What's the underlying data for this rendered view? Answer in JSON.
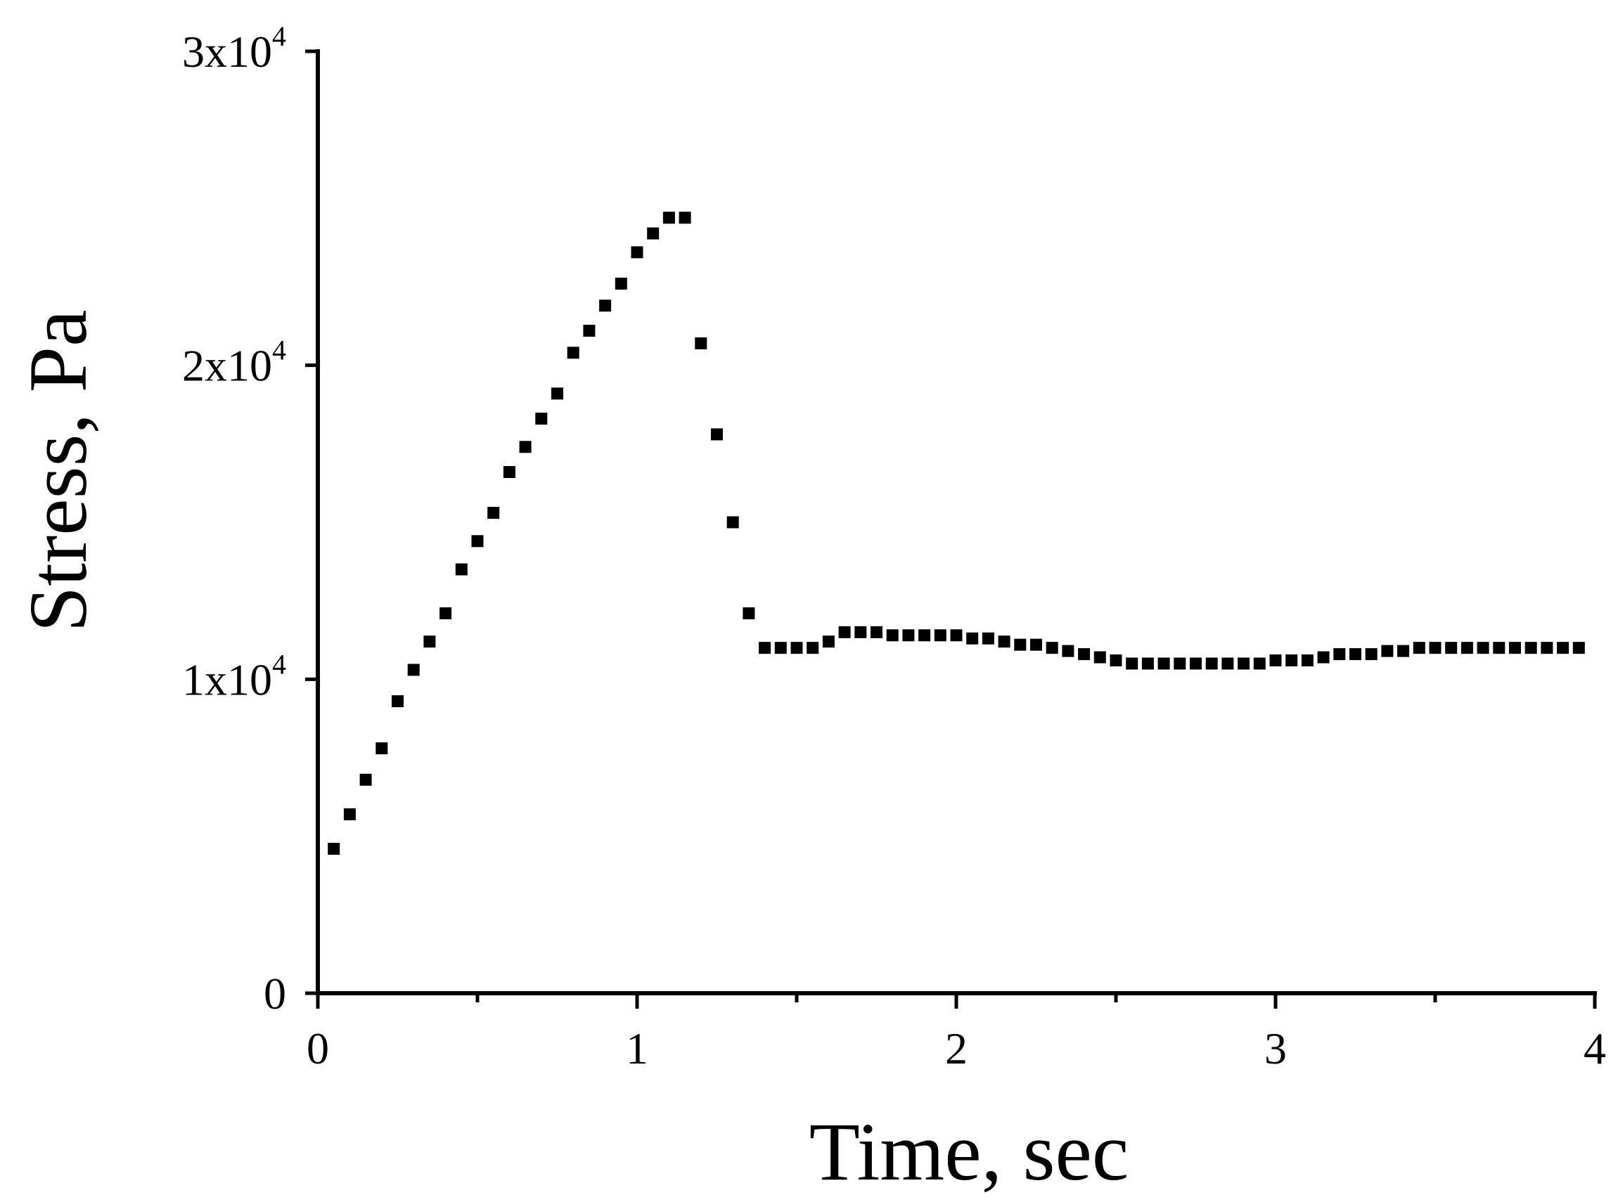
{
  "chart_data": {
    "type": "scatter",
    "title": "",
    "xlabel": "Time, sec",
    "ylabel": "Stress, Pa",
    "xlim": [
      0,
      4
    ],
    "ylim": [
      0,
      30000
    ],
    "grid": false,
    "marker": "square",
    "color": "#000000",
    "x_ticks": [
      {
        "value": 0,
        "label": "0"
      },
      {
        "value": 1,
        "label": "1"
      },
      {
        "value": 2,
        "label": "2"
      },
      {
        "value": 3,
        "label": "3"
      },
      {
        "value": 4,
        "label": "4"
      }
    ],
    "x_minor_ticks": [
      0.5,
      1.5,
      2.5,
      3.5
    ],
    "y_ticks": [
      {
        "value": 0,
        "base": "0",
        "exp": ""
      },
      {
        "value": 10000,
        "base": "1x10",
        "exp": "4"
      },
      {
        "value": 20000,
        "base": "2x10",
        "exp": "4"
      },
      {
        "value": 30000,
        "base": "3x10",
        "exp": "4"
      }
    ],
    "series": [
      {
        "x": [
          0.05,
          0.1,
          0.15,
          0.2,
          0.25,
          0.3,
          0.35,
          0.4,
          0.45,
          0.5,
          0.55,
          0.6,
          0.65,
          0.7,
          0.75,
          0.8,
          0.85,
          0.9,
          0.95,
          1.0,
          1.05,
          1.1,
          1.15,
          1.2,
          1.25,
          1.3,
          1.35,
          1.4,
          1.45,
          1.5,
          1.55,
          1.6,
          1.65,
          1.7,
          1.75,
          1.8,
          1.85,
          1.9,
          1.95,
          2.0,
          2.05,
          2.1,
          2.15,
          2.2,
          2.25,
          2.3,
          2.35,
          2.4,
          2.45,
          2.5,
          2.55,
          2.6,
          2.65,
          2.7,
          2.75,
          2.8,
          2.85,
          2.9,
          2.95,
          3.0,
          3.05,
          3.1,
          3.15,
          3.2,
          3.25,
          3.3,
          3.35,
          3.4,
          3.45,
          3.5,
          3.55,
          3.6,
          3.65,
          3.7,
          3.75,
          3.8,
          3.85,
          3.9,
          3.95
        ],
        "y": [
          4600,
          5700,
          6800,
          7800,
          9300,
          10300,
          11200,
          12100,
          13500,
          14400,
          15300,
          16600,
          17400,
          18300,
          19100,
          20400,
          21100,
          21900,
          22600,
          23600,
          24200,
          24700,
          24700,
          20700,
          17800,
          15000,
          12100,
          11000,
          11000,
          11000,
          11000,
          11200,
          11500,
          11500,
          11500,
          11400,
          11400,
          11400,
          11400,
          11400,
          11300,
          11300,
          11200,
          11100,
          11100,
          11000,
          10900,
          10800,
          10700,
          10600,
          10500,
          10500,
          10500,
          10500,
          10500,
          10500,
          10500,
          10500,
          10500,
          10600,
          10600,
          10600,
          10700,
          10800,
          10800,
          10800,
          10900,
          10900,
          11000,
          11000,
          11000,
          11000,
          11000,
          11000,
          11000,
          11000,
          11000,
          11000,
          11000
        ]
      }
    ]
  }
}
